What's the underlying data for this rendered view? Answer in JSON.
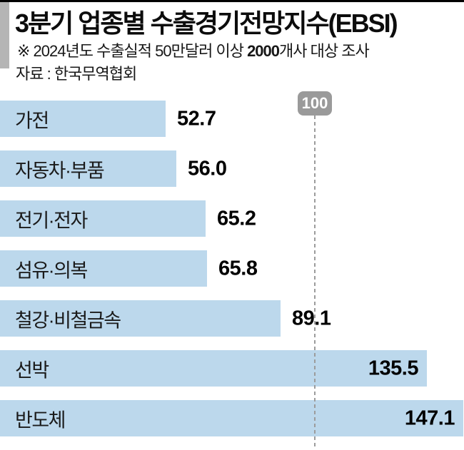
{
  "header": {
    "title": "3분기 업종별 수출경기전망지수(EBSI)",
    "note_text_1": "※ 2024년도 수출실적 50만달러 이상 ",
    "note_bold": "2000",
    "note_text_2": "개사 대상 조사",
    "source": "자료 : 한국무역협회"
  },
  "chart_data": {
    "type": "bar",
    "orientation": "horizontal",
    "title": "3분기 업종별 수출경기전망지수(EBSI)",
    "subtitle": "※ 2024년도 수출실적 50만달러 이상 2000개사 대상 조사",
    "source": "자료 : 한국무역협회",
    "categories": [
      "가전",
      "자동차·부품",
      "전기·전자",
      "섬유·의복",
      "철강·비철금속",
      "선박",
      "반도체"
    ],
    "values": [
      52.7,
      56.0,
      65.2,
      65.8,
      89.1,
      135.5,
      147.1
    ],
    "display_values": [
      "52.7",
      "56.0",
      "65.2",
      "65.8",
      "89.1",
      "135.5",
      "147.1"
    ],
    "reference_line": {
      "value": 100,
      "label": "100"
    },
    "xlim": [
      0,
      147.1
    ],
    "grid": false,
    "legend": "none",
    "colors": {
      "bar": "#bcd8ec",
      "reference_badge": "#9a9a9a",
      "reference_badge_text": "#ffffff",
      "reference_dash": "#9c9c9c",
      "value_text": "#000000",
      "category_text": "#1a1a1a",
      "top_rule": "#000000",
      "left_strip": "#b5b5b5"
    }
  }
}
